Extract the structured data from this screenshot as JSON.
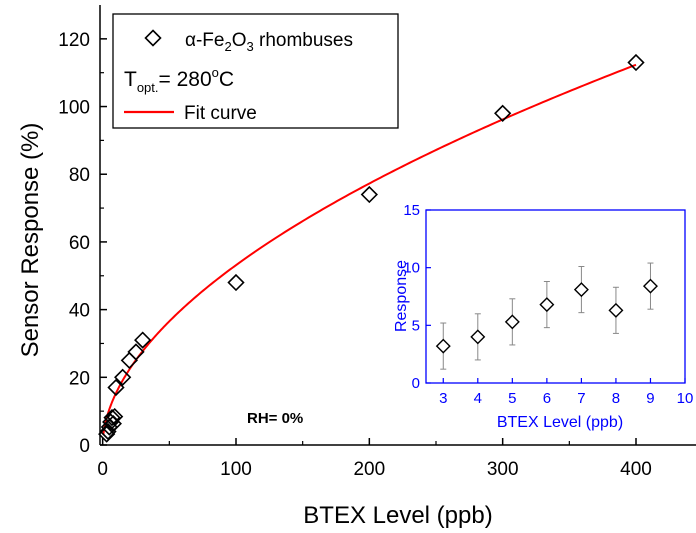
{
  "colors": {
    "axis": "#000000",
    "fit": "#ff0000",
    "inset_axis": "#0000ff",
    "marker": "#000000",
    "errorbar": "#888888"
  },
  "chart_data": [
    {
      "type": "scatter",
      "title": "",
      "xlabel": "BTEX Level (ppb)",
      "ylabel": "Sensor Response (%)",
      "xlim": [
        -2,
        445
      ],
      "ylim": [
        0,
        130
      ],
      "x_ticks": [
        0,
        100,
        200,
        300,
        400
      ],
      "y_ticks": [
        0,
        20,
        40,
        60,
        80,
        100,
        120
      ],
      "grid": false,
      "legend_position": "top-left",
      "legend": {
        "marker_label_parts": {
          "prefix": "α-Fe",
          "sub1": "2",
          "mid": "O",
          "sub2": "3",
          "suffix": "  rhombuses"
        },
        "topt_parts": {
          "t": "T",
          "sub": "opt.",
          "eq": "= 280",
          "sup": "o",
          "unit": "C"
        },
        "fit_label": "Fit curve"
      },
      "annotation": "RH= 0%",
      "series": [
        {
          "name": "α-Fe2O3 rhombuses",
          "marker": "diamond",
          "x": [
            3,
            4,
            5,
            6,
            7,
            8,
            9,
            10,
            15,
            20,
            25,
            30,
            100,
            200,
            300,
            400
          ],
          "y": [
            3.2,
            4.0,
            5.3,
            6.8,
            8.1,
            6.3,
            8.4,
            17,
            20,
            25,
            27.5,
            31,
            48,
            74,
            98,
            113
          ]
        },
        {
          "name": "Fit curve",
          "type": "line",
          "model": "power",
          "a": 4.42,
          "b": 0.54
        }
      ]
    },
    {
      "type": "scatter",
      "title": "",
      "xlabel": "BTEX Level (ppb)",
      "ylabel": "Response",
      "xlim": [
        2.5,
        10
      ],
      "ylim": [
        0,
        15
      ],
      "x_ticks": [
        3,
        4,
        5,
        6,
        7,
        8,
        9,
        10
      ],
      "y_ticks": [
        0,
        5,
        10,
        15
      ],
      "grid": false,
      "series": [
        {
          "name": "",
          "marker": "diamond",
          "x": [
            3,
            4,
            5,
            6,
            7,
            8,
            9
          ],
          "y": [
            3.2,
            4.0,
            5.3,
            6.8,
            8.1,
            6.3,
            8.4
          ],
          "error": [
            2.0,
            2.0,
            2.0,
            2.0,
            2.0,
            2.0,
            2.0
          ]
        }
      ]
    }
  ]
}
